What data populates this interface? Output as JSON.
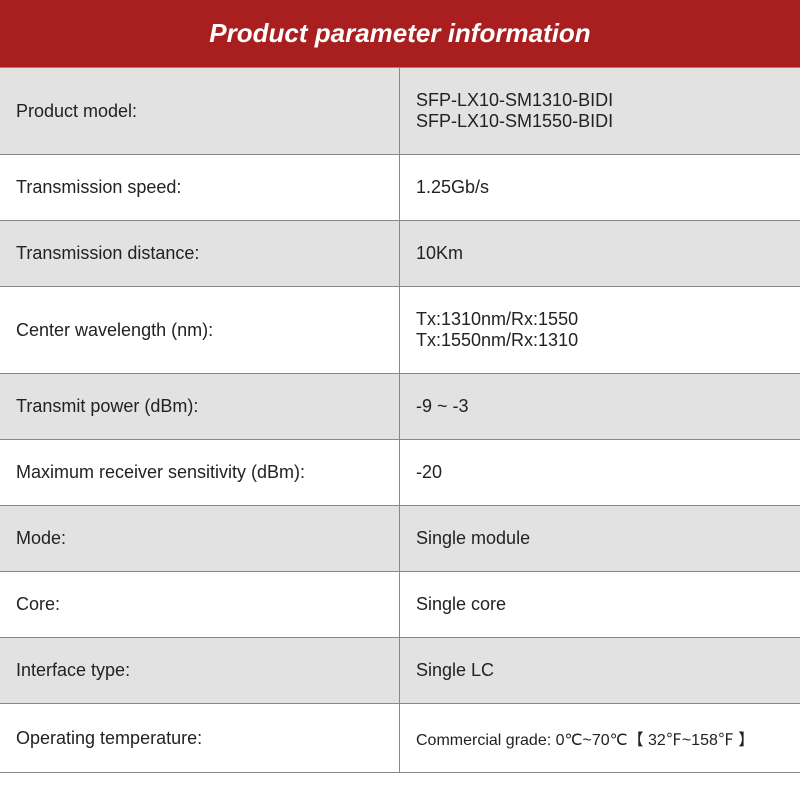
{
  "title": "Product parameter information",
  "colors": {
    "header_bg": "#a91e1e",
    "header_text": "#ffffff",
    "row_odd_bg": "#e2e2e2",
    "row_even_bg": "#ffffff",
    "border": "#888888",
    "text": "#222222"
  },
  "typography": {
    "title_fontsize": 26,
    "label_fontsize": 18,
    "value_fontsize": 18,
    "small_fontsize": 16
  },
  "rows": [
    {
      "label": "Product model:",
      "value": "SFP-LX10-SM1310-BIDI\nSFP-LX10-SM1550-BIDI"
    },
    {
      "label": "Transmission speed:",
      "value": "1.25Gb/s"
    },
    {
      "label": "Transmission distance:",
      "value": "10Km"
    },
    {
      "label": "Center wavelength (nm):",
      "value": "Tx:1310nm/Rx:1550\nTx:1550nm/Rx:1310"
    },
    {
      "label": "Transmit power (dBm):",
      "value": "-9 ~ -3"
    },
    {
      "label": "Maximum receiver sensitivity (dBm):",
      "value": "-20"
    },
    {
      "label": "Mode:",
      "value": "Single module"
    },
    {
      "label": "Core:",
      "value": "Single core"
    },
    {
      "label": "Interface type:",
      "value": "Single LC"
    },
    {
      "label": "Operating temperature:",
      "value": "Commercial grade: 0℃~70℃【 32℉~158℉ 】",
      "small": true
    }
  ]
}
